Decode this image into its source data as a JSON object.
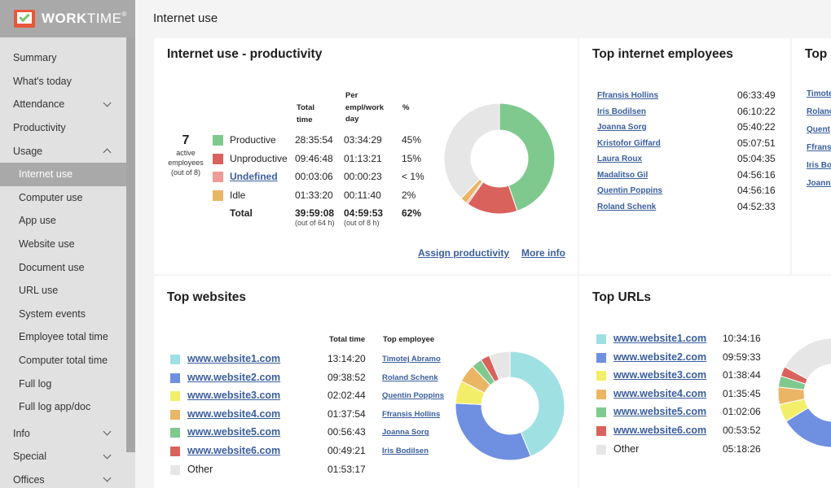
{
  "app": {
    "logo_bold": "WORK",
    "logo_light": "TIME",
    "logo_mark": "®"
  },
  "header": {
    "title": "Internet use"
  },
  "sidebar": {
    "items": [
      {
        "label": "Summary"
      },
      {
        "label": "What's today"
      },
      {
        "label": "Attendance"
      },
      {
        "label": "Productivity"
      },
      {
        "label": "Usage"
      },
      {
        "label": "Internet use"
      },
      {
        "label": "Computer use"
      },
      {
        "label": "App use"
      },
      {
        "label": "Website use"
      },
      {
        "label": "Document use"
      },
      {
        "label": "URL use"
      },
      {
        "label": "System events"
      },
      {
        "label": "Employee total time"
      },
      {
        "label": "Computer total time"
      },
      {
        "label": "Full log"
      },
      {
        "label": "Full log app/doc"
      },
      {
        "label": "Info"
      },
      {
        "label": "Special"
      },
      {
        "label": "Offices"
      }
    ]
  },
  "productivity": {
    "title": "Internet use - productivity",
    "active_count": "7",
    "active_label": "active employees",
    "active_of": "(out of 8)",
    "headers": {
      "total": "Total time",
      "per": "Per empl/work day",
      "pct": "%"
    },
    "rows": [
      {
        "label": "Productive",
        "total": "28:35:54",
        "per": "03:34:29",
        "pct": "45%",
        "color": "#7fc98f"
      },
      {
        "label": "Unproductive",
        "total": "09:46:48",
        "per": "01:13:21",
        "pct": "15%",
        "color": "#d9625c"
      },
      {
        "label": "Undefined",
        "total": "00:03:06",
        "per": "00:00:23",
        "pct": "< 1%",
        "color": "#ef9b97"
      },
      {
        "label": "Idle",
        "total": "01:33:20",
        "per": "00:11:40",
        "pct": "2%",
        "color": "#e9b566"
      }
    ],
    "total": {
      "label": "Total",
      "total": "39:59:08",
      "total_note": "(out of 64 h)",
      "per": "04:59:53",
      "per_note": "(out of 8 h)",
      "pct": "62%"
    },
    "links": {
      "assign": "Assign productivity",
      "more": "More info"
    },
    "donut": [
      {
        "value": 45,
        "color": "#7fc98f"
      },
      {
        "value": 15,
        "color": "#d9625c"
      },
      {
        "value": 0.5,
        "color": "#ef9b97"
      },
      {
        "value": 2,
        "color": "#e9b566"
      },
      {
        "value": 38,
        "color": "#e6e6e6"
      }
    ]
  },
  "top_employees": {
    "title": "Top internet employees",
    "rows": [
      {
        "name": "Ffransis Hollins",
        "time": "06:33:49"
      },
      {
        "name": "Iris Bodilsen",
        "time": "06:10:22"
      },
      {
        "name": "Joanna Sorg",
        "time": "05:40:22"
      },
      {
        "name": "Kristofor Giffard",
        "time": "05:07:51"
      },
      {
        "name": "Laura Roux",
        "time": "05:04:35"
      },
      {
        "name": "Madalitso Gil",
        "time": "04:56:16"
      },
      {
        "name": "Quentin Poppins",
        "time": "04:56:16"
      },
      {
        "name": "Roland Schenk",
        "time": "04:52:33"
      }
    ]
  },
  "third_panel": {
    "title": "Top s",
    "names": [
      "Timote",
      "Rolanc",
      "Quent",
      "Ffrans",
      "Iris Bo",
      "Joanna"
    ]
  },
  "top_websites": {
    "title": "Top websites",
    "headers": {
      "total": "Total time",
      "employee": "Top employee"
    },
    "rows": [
      {
        "site": "www.website1.com",
        "time": "13:14:20",
        "employee": "Timotej Abramo",
        "color": "#9fe0e3"
      },
      {
        "site": "www.website2.com",
        "time": "09:38:52",
        "employee": "Roland Schenk",
        "color": "#6f8fe0"
      },
      {
        "site": "www.website3.com",
        "time": "02:02:44",
        "employee": "Quentin Poppins",
        "color": "#f2ee6a"
      },
      {
        "site": "www.website4.com",
        "time": "01:37:54",
        "employee": "Ffransis Hollins",
        "color": "#ebb566"
      },
      {
        "site": "www.website5.com",
        "time": "00:56:43",
        "employee": "Joanna Sorg",
        "color": "#7fc98f"
      },
      {
        "site": "www.website6.com",
        "time": "00:49:21",
        "employee": "Iris Bodilsen",
        "color": "#d9625c"
      },
      {
        "site": "Other",
        "time": "01:53:17",
        "employee": "",
        "color": "#e6e6e6"
      }
    ],
    "donut": [
      {
        "value": 794,
        "color": "#9fe0e3"
      },
      {
        "value": 579,
        "color": "#6f8fe0"
      },
      {
        "value": 123,
        "color": "#f2ee6a"
      },
      {
        "value": 98,
        "color": "#ebb566"
      },
      {
        "value": 57,
        "color": "#7fc98f"
      },
      {
        "value": 49,
        "color": "#d9625c"
      },
      {
        "value": 113,
        "color": "#e6e6e6"
      }
    ]
  },
  "top_urls": {
    "title": "Top URLs",
    "rows": [
      {
        "site": "www.website1.com",
        "time": "10:34:16",
        "color": "#9fe0e3"
      },
      {
        "site": "www.website2.com",
        "time": "09:59:33",
        "color": "#6f8fe0"
      },
      {
        "site": "www.website3.com",
        "time": "01:38:44",
        "color": "#f2ee6a"
      },
      {
        "site": "www.website4.com",
        "time": "01:35:45",
        "color": "#ebb566"
      },
      {
        "site": "www.website5.com",
        "time": "01:02:06",
        "color": "#7fc98f"
      },
      {
        "site": "www.website6.com",
        "time": "00:53:52",
        "color": "#d9625c"
      },
      {
        "site": "Other",
        "time": "05:18:26",
        "color": "#e6e6e6"
      }
    ],
    "donut": [
      {
        "value": 634,
        "color": "#9fe0e3"
      },
      {
        "value": 600,
        "color": "#6f8fe0"
      },
      {
        "value": 99,
        "color": "#f2ee6a"
      },
      {
        "value": 96,
        "color": "#ebb566"
      },
      {
        "value": 62,
        "color": "#7fc98f"
      },
      {
        "value": 54,
        "color": "#d9625c"
      },
      {
        "value": 318,
        "color": "#e6e6e6"
      }
    ]
  }
}
